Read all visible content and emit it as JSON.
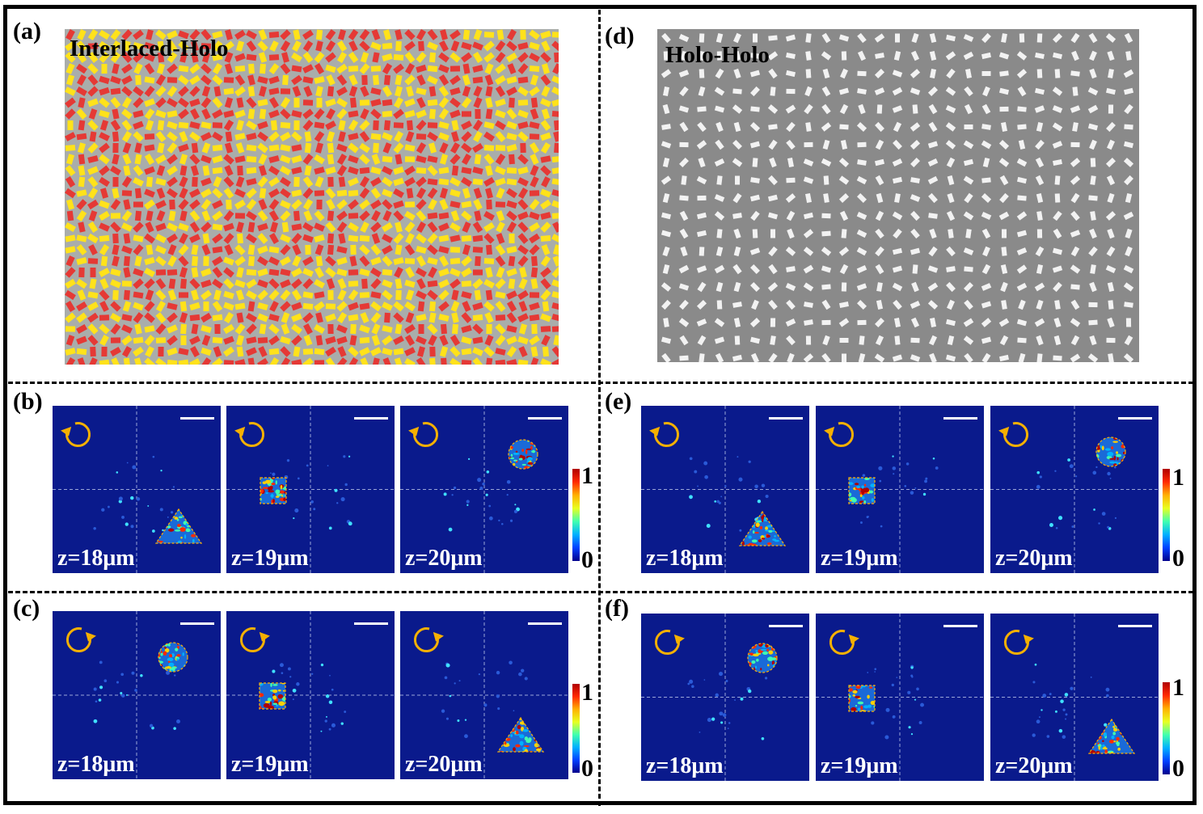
{
  "panels": {
    "a": {
      "label": "(a)",
      "title": "Interlaced-Holo"
    },
    "d": {
      "label": "(d)",
      "title": "Holo-Holo"
    },
    "b": {
      "label": "(b)"
    },
    "c": {
      "label": "(c)"
    },
    "e": {
      "label": "(e)"
    },
    "f": {
      "label": "(f)"
    }
  },
  "z_labels": [
    "z=18μm",
    "z=19μm",
    "z=20μm"
  ],
  "colorbar": {
    "max": "1",
    "min": "0"
  },
  "colors": {
    "meta_bg_a": "#a9adab",
    "meta_red": "#e53935",
    "meta_yellow": "#ffe21a",
    "meta_bg_d": "#8a8a8a",
    "meta_white": "#f2f2f2",
    "field_bg": "#0a1a8c",
    "arrow": "#f5b000"
  },
  "icons": {
    "rotation_b_e": "counterclockwise-arrow-icon",
    "rotation_c_f": "clockwise-arrow-icon"
  }
}
